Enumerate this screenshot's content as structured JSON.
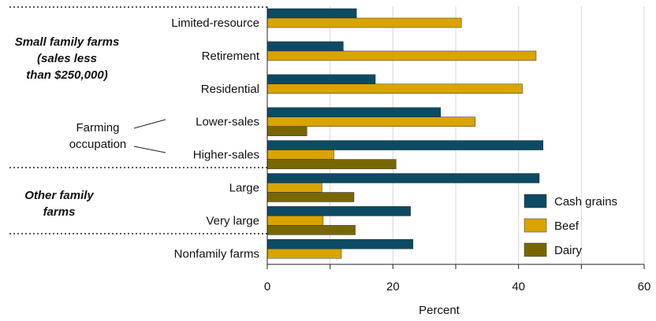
{
  "chart_data": {
    "type": "bar",
    "orientation": "horizontal",
    "categories": [
      "Limited-resource",
      "Retirement",
      "Residential",
      "Lower-sales",
      "Higher-sales",
      "Large",
      "Very large",
      "Nonfamily farms"
    ],
    "series": [
      {
        "name": "Cash grains",
        "color": "#0d4a63",
        "values": [
          14.2,
          12.1,
          17.2,
          27.6,
          43.9,
          43.3,
          22.8,
          23.2
        ]
      },
      {
        "name": "Beef",
        "color": "#d9a400",
        "values": [
          30.9,
          42.8,
          40.6,
          33.1,
          10.6,
          8.7,
          8.9,
          11.8
        ]
      },
      {
        "name": "Dairy",
        "color": "#786700",
        "values": [
          null,
          null,
          null,
          6.3,
          20.5,
          13.8,
          14.0,
          null
        ]
      }
    ],
    "xlabel": "Percent",
    "xlim": [
      0,
      60
    ],
    "xticks": [
      "0",
      "20",
      "40",
      "60"
    ],
    "legend_position": "bottom-right",
    "groups": [
      {
        "label_lines": [
          "Small family farms",
          "(sales less",
          "than $250,000)"
        ]
      },
      {
        "label_lines": [
          "Other family",
          "farms"
        ]
      }
    ],
    "annotation": {
      "label_lines": [
        "Farming",
        "occupation"
      ]
    }
  }
}
